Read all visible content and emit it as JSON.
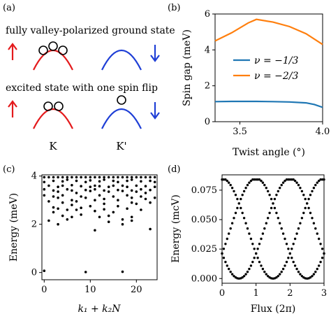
{
  "panel_a": {
    "label": "(a)",
    "text_ground": "fully valley-polarized ground state",
    "text_excited": "excited state with one spin flip",
    "valley_k": "K",
    "valley_kp": "K'",
    "color_red": "#e41a1c",
    "color_blue": "#1f3fd6"
  },
  "panel_b": {
    "label": "(b)"
  },
  "panel_c": {
    "label": "(c)"
  },
  "panel_d": {
    "label": "(d)"
  },
  "chart_data": [
    {
      "panel": "b",
      "type": "line",
      "xlabel": "Twist angle (°)",
      "ylabel": "Spin gap (meV)",
      "xlim": [
        3.35,
        4.0
      ],
      "ylim": [
        0,
        6
      ],
      "xticks": [
        "3.5",
        "4.0"
      ],
      "yticks": [
        "0",
        "2",
        "4",
        "6"
      ],
      "legend": "center-right",
      "series": [
        {
          "name": "ν = −1/3",
          "color": "#1f77b4",
          "x": [
            3.35,
            3.45,
            3.55,
            3.6,
            3.7,
            3.8,
            3.9,
            3.95,
            4.0
          ],
          "y": [
            1.12,
            1.13,
            1.13,
            1.13,
            1.12,
            1.1,
            1.05,
            0.96,
            0.8
          ]
        },
        {
          "name": "ν = −2/3",
          "color": "#ff7f0e",
          "x": [
            3.35,
            3.45,
            3.55,
            3.6,
            3.7,
            3.8,
            3.9,
            4.0
          ],
          "y": [
            4.5,
            4.95,
            5.5,
            5.7,
            5.55,
            5.3,
            4.9,
            4.3
          ]
        }
      ]
    },
    {
      "panel": "c",
      "type": "scatter",
      "xlabel": "k₁ + k₂N",
      "ylabel": "Energy (meV)",
      "xlim": [
        -0.5,
        24.5
      ],
      "ylim": [
        -0.3,
        4.05
      ],
      "xticks": [
        "0",
        "10",
        "20"
      ],
      "yticks": [
        "0",
        "2",
        "4"
      ],
      "points": [
        [
          0,
          0.07
        ],
        [
          9,
          0.02
        ],
        [
          17,
          0.03
        ],
        [
          0,
          3.95
        ],
        [
          1,
          3.95
        ],
        [
          2,
          3.95
        ],
        [
          3,
          3.95
        ],
        [
          4,
          3.95
        ],
        [
          5,
          3.95
        ],
        [
          6,
          3.95
        ],
        [
          7,
          3.95
        ],
        [
          8,
          3.95
        ],
        [
          9,
          3.95
        ],
        [
          10,
          3.95
        ],
        [
          11,
          3.95
        ],
        [
          12,
          3.95
        ],
        [
          13,
          3.95
        ],
        [
          14,
          3.95
        ],
        [
          15,
          3.95
        ],
        [
          16,
          3.95
        ],
        [
          17,
          3.95
        ],
        [
          18,
          3.95
        ],
        [
          19,
          3.95
        ],
        [
          20,
          3.95
        ],
        [
          21,
          3.95
        ],
        [
          22,
          3.95
        ],
        [
          23,
          3.95
        ],
        [
          24,
          3.95
        ],
        [
          0,
          3.75
        ],
        [
          2,
          3.8
        ],
        [
          4,
          3.78
        ],
        [
          5,
          3.85
        ],
        [
          7,
          3.8
        ],
        [
          9,
          3.75
        ],
        [
          10,
          3.82
        ],
        [
          12,
          3.78
        ],
        [
          13,
          3.85
        ],
        [
          15,
          3.8
        ],
        [
          16,
          3.75
        ],
        [
          18,
          3.8
        ],
        [
          19,
          3.85
        ],
        [
          21,
          3.78
        ],
        [
          23,
          3.8
        ],
        [
          24,
          3.75
        ],
        [
          1,
          3.6
        ],
        [
          3,
          3.55
        ],
        [
          4,
          3.6
        ],
        [
          6,
          3.62
        ],
        [
          8,
          3.58
        ],
        [
          10,
          3.55
        ],
        [
          11,
          3.6
        ],
        [
          12,
          3.58
        ],
        [
          14,
          3.55
        ],
        [
          15,
          3.6
        ],
        [
          17,
          3.6
        ],
        [
          18,
          3.55
        ],
        [
          20,
          3.6
        ],
        [
          22,
          3.58
        ],
        [
          24,
          3.55
        ],
        [
          0,
          3.45
        ],
        [
          2,
          3.4
        ],
        [
          3,
          3.35
        ],
        [
          5,
          3.45
        ],
        [
          6,
          3.4
        ],
        [
          7,
          3.3
        ],
        [
          9,
          3.42
        ],
        [
          10,
          3.38
        ],
        [
          11,
          3.45
        ],
        [
          13,
          3.4
        ],
        [
          14,
          3.35
        ],
        [
          16,
          3.42
        ],
        [
          17,
          3.38
        ],
        [
          19,
          3.4
        ],
        [
          20,
          3.35
        ],
        [
          21,
          3.45
        ],
        [
          22,
          3.3
        ],
        [
          23,
          3.42
        ],
        [
          0,
          3.2
        ],
        [
          2,
          3.15
        ],
        [
          3,
          3.1
        ],
        [
          4,
          3.2
        ],
        [
          6,
          3.0
        ],
        [
          8,
          3.15
        ],
        [
          9,
          3.1
        ],
        [
          11,
          3.0
        ],
        [
          12,
          3.2
        ],
        [
          13,
          3.05
        ],
        [
          15,
          3.15
        ],
        [
          16,
          3.0
        ],
        [
          18,
          3.2
        ],
        [
          19,
          3.1
        ],
        [
          21,
          3.15
        ],
        [
          22,
          3.05
        ],
        [
          24,
          3.1
        ],
        [
          1,
          2.95
        ],
        [
          4,
          2.9
        ],
        [
          6,
          2.8
        ],
        [
          7,
          2.95
        ],
        [
          10,
          2.75
        ],
        [
          13,
          2.85
        ],
        [
          16,
          2.75
        ],
        [
          19,
          2.9
        ],
        [
          20,
          2.85
        ],
        [
          23,
          2.9
        ],
        [
          2,
          2.7
        ],
        [
          3,
          2.65
        ],
        [
          5,
          2.6
        ],
        [
          7,
          2.6
        ],
        [
          8,
          2.68
        ],
        [
          11,
          2.55
        ],
        [
          13,
          2.62
        ],
        [
          15,
          2.5
        ],
        [
          18,
          2.65
        ],
        [
          21,
          2.6
        ],
        [
          2,
          2.5
        ],
        [
          4,
          2.35
        ],
        [
          6,
          2.3
        ],
        [
          8,
          2.4
        ],
        [
          12,
          2.3
        ],
        [
          14,
          2.35
        ],
        [
          17,
          2.2
        ],
        [
          19,
          2.3
        ],
        [
          1,
          2.15
        ],
        [
          3,
          2.0
        ],
        [
          5,
          2.2
        ],
        [
          14,
          2.1
        ],
        [
          17,
          2.0
        ],
        [
          19,
          2.15
        ],
        [
          11,
          1.75
        ],
        [
          23,
          1.8
        ]
      ]
    },
    {
      "panel": "d",
      "type": "scatter",
      "xlabel": "Flux (2π)",
      "ylabel": "Energy (mcV)",
      "xlim": [
        0,
        3
      ],
      "ylim": [
        -0.004,
        0.088
      ],
      "xticks": [
        "0",
        "1",
        "2",
        "3"
      ],
      "yticks": [
        "0.000",
        "0.025",
        "0.050",
        "0.075"
      ],
      "description_of_curves": "three branches E = 0.0425 + 0.0425·cos(2π(Φ − s)/3), s = 0, 1, 2; upper branch saturates near 0.084"
    }
  ]
}
